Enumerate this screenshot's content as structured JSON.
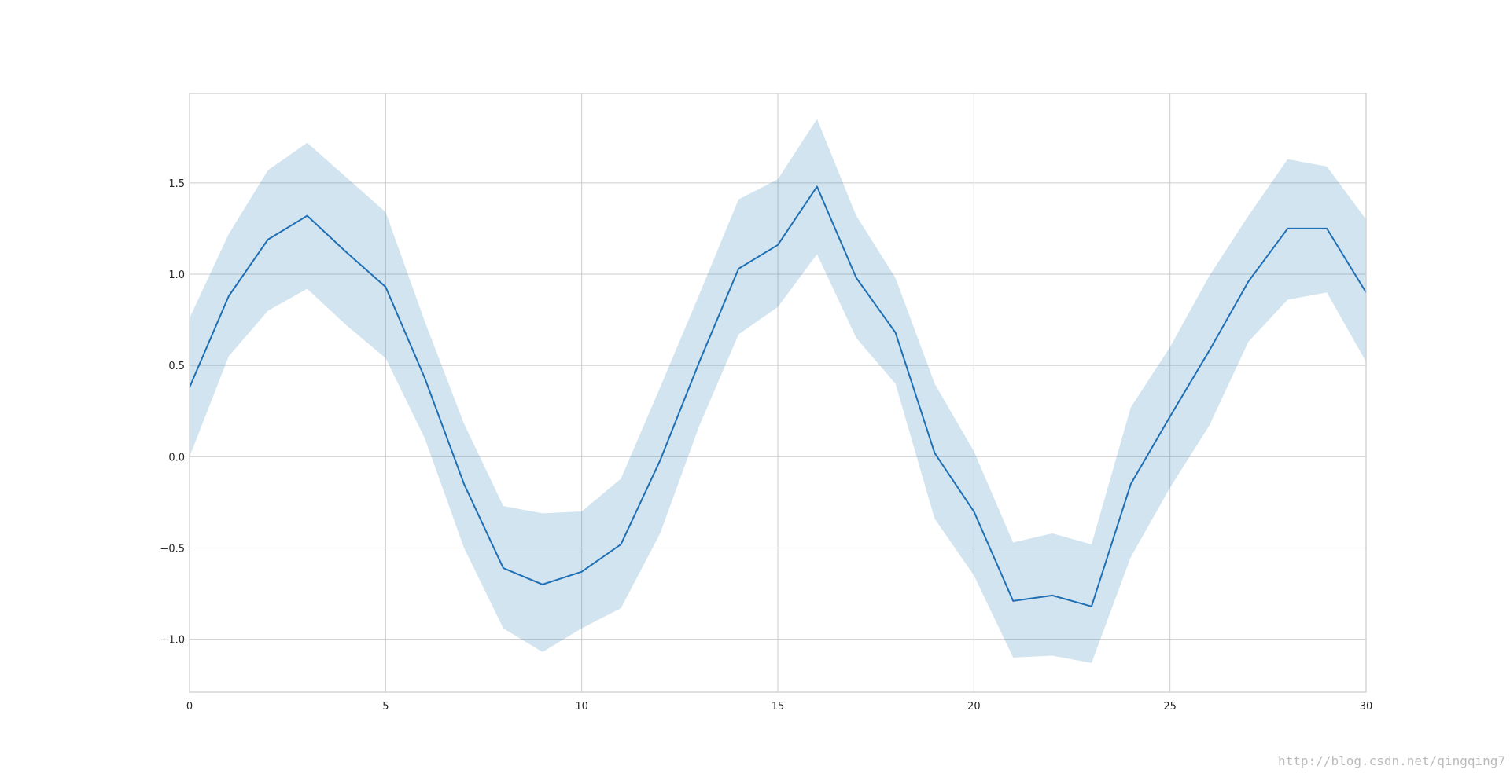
{
  "chart_data": {
    "type": "line",
    "title": "",
    "xlabel": "",
    "ylabel": "",
    "xlim": [
      0,
      30
    ],
    "ylim": [
      -1.29,
      1.99
    ],
    "grid": true,
    "x_ticks": [
      0,
      5,
      10,
      15,
      20,
      25,
      30
    ],
    "x_tick_labels": [
      "0",
      "5",
      "10",
      "15",
      "20",
      "25",
      "30"
    ],
    "y_ticks": [
      -1.0,
      -0.5,
      0.0,
      0.5,
      1.0,
      1.5
    ],
    "y_tick_labels": [
      "−1.0",
      "−0.5",
      "0.0",
      "0.5",
      "1.0",
      "1.5"
    ],
    "colors": {
      "line": "#1f6fb4",
      "band": "#1f77b4"
    },
    "x": [
      0,
      1,
      2,
      3,
      4,
      5,
      6,
      7,
      8,
      9,
      10,
      11,
      12,
      13,
      14,
      15,
      16,
      17,
      18,
      19,
      20,
      21,
      22,
      23,
      24,
      25,
      26,
      27,
      28,
      29,
      30
    ],
    "series": [
      {
        "values": [
          0.38,
          0.88,
          1.19,
          1.32,
          1.12,
          0.93,
          0.43,
          -0.15,
          -0.61,
          -0.7,
          -0.63,
          -0.48,
          -0.02,
          0.52,
          1.03,
          1.16,
          1.48,
          0.98,
          0.68,
          0.02,
          -0.3,
          -0.79,
          -0.76,
          -0.82,
          -0.15,
          0.22,
          0.58,
          0.96,
          1.25,
          1.25,
          0.9
        ]
      }
    ],
    "band": {
      "lower": [
        0.0,
        0.55,
        0.8,
        0.92,
        0.72,
        0.54,
        0.1,
        -0.5,
        -0.94,
        -1.07,
        -0.94,
        -0.83,
        -0.42,
        0.17,
        0.67,
        0.82,
        1.11,
        0.65,
        0.4,
        -0.34,
        -0.65,
        -1.1,
        -1.09,
        -1.13,
        -0.55,
        -0.17,
        0.17,
        0.63,
        0.86,
        0.9,
        0.52
      ],
      "upper": [
        0.76,
        1.22,
        1.57,
        1.72,
        1.53,
        1.34,
        0.74,
        0.18,
        -0.27,
        -0.31,
        -0.3,
        -0.12,
        0.38,
        0.89,
        1.41,
        1.52,
        1.85,
        1.32,
        0.98,
        0.4,
        0.03,
        -0.47,
        -0.42,
        -0.48,
        0.27,
        0.6,
        0.99,
        1.32,
        1.63,
        1.59,
        1.3
      ]
    }
  },
  "watermark": {
    "text": "http://blog.csdn.net/qingqing7"
  }
}
